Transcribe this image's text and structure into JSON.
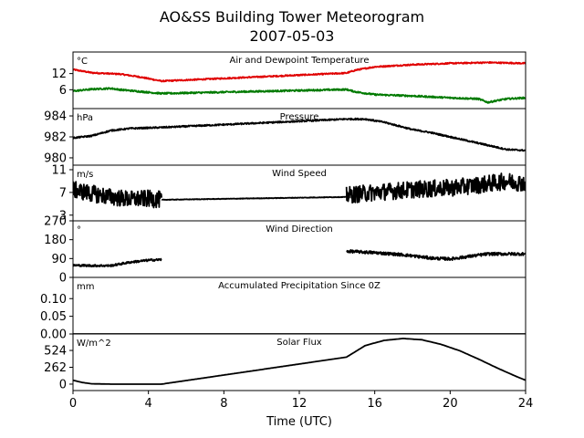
{
  "title": "AO&SS Building Tower Meteorogram",
  "subtitle": "2007-05-03",
  "chart_data": [
    {
      "type": "line",
      "title": "Air and Dewpoint Temperature",
      "unit": "°C",
      "ylim": [
        -1,
        20
      ],
      "yticks": [
        6,
        12
      ],
      "ytick_labels": [
        "6",
        "12"
      ],
      "series": [
        {
          "color": "#e00000",
          "noise": 0.25,
          "x": [
            0,
            1,
            2.5,
            3.5,
            4.7,
            14.5,
            15,
            16,
            18,
            20,
            22,
            24
          ],
          "y": [
            13.5,
            12.3,
            11.8,
            10.8,
            9.2,
            12.2,
            13.3,
            14.5,
            15.3,
            15.8,
            16.1,
            15.8
          ]
        },
        {
          "color": "#007a00",
          "noise": 0.3,
          "x": [
            0,
            1,
            2,
            2.5,
            4.7,
            14.5,
            15,
            16,
            18,
            20,
            21.5,
            22,
            22.5,
            23,
            24
          ],
          "y": [
            5.5,
            6.2,
            6.5,
            6.0,
            4.6,
            6.1,
            5.2,
            4.2,
            3.7,
            3.0,
            2.6,
            1.3,
            2.0,
            2.6,
            3.0
          ]
        }
      ]
    },
    {
      "type": "line",
      "title": "Pressure",
      "unit": "hPa",
      "ylim": [
        979.3,
        984.7
      ],
      "yticks": [
        980,
        982,
        984
      ],
      "ytick_labels": [
        "980",
        "982",
        "984"
      ],
      "series": [
        {
          "color": "#000000",
          "noise": 0.07,
          "x": [
            0,
            1,
            2,
            3,
            4.7,
            14.5,
            15.5,
            16.5,
            18,
            19,
            20,
            21,
            22,
            23,
            24
          ],
          "y": [
            981.9,
            982.1,
            982.6,
            982.8,
            982.9,
            983.7,
            983.7,
            983.4,
            982.7,
            982.4,
            982.0,
            981.6,
            981.2,
            980.8,
            980.7
          ]
        }
      ]
    },
    {
      "type": "line",
      "title": "Wind Speed",
      "unit": "m/s",
      "ylim": [
        2,
        11.8
      ],
      "yticks": [
        3,
        7,
        11
      ],
      "ytick_labels": [
        "3",
        "7",
        "11"
      ],
      "series": [
        {
          "color": "#000000",
          "noise": 1.5,
          "x": [
            0,
            1,
            2,
            3,
            4,
            4.7
          ],
          "y": [
            7.5,
            6.8,
            6.2,
            5.8,
            5.9,
            5.7
          ]
        },
        {
          "color": "#000000",
          "noise": 0.05,
          "x": [
            4.7,
            14.5
          ],
          "y": [
            5.7,
            6.2
          ]
        },
        {
          "color": "#000000",
          "noise": 1.5,
          "x": [
            14.5,
            16,
            18,
            20,
            21.5,
            23,
            24
          ],
          "y": [
            6.5,
            7.0,
            7.5,
            7.8,
            8.3,
            9.0,
            8.6
          ]
        }
      ]
    },
    {
      "type": "line",
      "title": "Wind Direction",
      "unit": "°",
      "ylim": [
        0,
        270
      ],
      "yticks": [
        0,
        90,
        180,
        270
      ],
      "ytick_labels": [
        "0",
        "90",
        "180",
        "270"
      ],
      "series": [
        {
          "color": "#000000",
          "noise": 5,
          "x": [
            0,
            1,
            2,
            3,
            4,
            4.7
          ],
          "y": [
            58,
            56,
            56,
            72,
            82,
            85
          ]
        },
        {
          "color": "#000000",
          "noise": 7,
          "x": [
            14.5,
            16,
            17.5,
            19,
            20,
            22,
            24
          ],
          "y": [
            125,
            118,
            108,
            92,
            88,
            112,
            112
          ]
        }
      ]
    },
    {
      "type": "line",
      "title": "Accumulated Precipitation Since 0Z",
      "unit": "mm",
      "ylim": [
        0,
        0.16
      ],
      "yticks": [
        0.0,
        0.05,
        0.1
      ],
      "ytick_labels": [
        "0.00",
        "0.05",
        "0.10"
      ],
      "series": [
        {
          "color": "#000000",
          "noise": 0,
          "x": [
            0,
            24
          ],
          "y": [
            0,
            0
          ]
        }
      ]
    },
    {
      "type": "line",
      "title": "Solar Flux",
      "unit": "W/m^2",
      "ylim": [
        -100,
        780
      ],
      "yticks": [
        0,
        262,
        524
      ],
      "ytick_labels": [
        "0",
        "262",
        "524"
      ],
      "series": [
        {
          "color": "#000000",
          "noise": 0,
          "x": [
            0,
            0.5,
            1,
            2,
            3,
            4.7,
            14.5,
            15.5,
            16.5,
            17.5,
            18.5,
            19.5,
            20.5,
            21.5,
            22.5,
            23.5,
            24
          ],
          "y": [
            60,
            25,
            5,
            0,
            0,
            0,
            420,
            600,
            680,
            710,
            690,
            620,
            520,
            390,
            250,
            120,
            60
          ]
        }
      ]
    }
  ],
  "x_axis": {
    "label": "Time (UTC)",
    "xlim": [
      0,
      24
    ],
    "ticks": [
      0,
      4,
      8,
      12,
      16,
      20,
      24
    ],
    "tick_labels": [
      "0",
      "4",
      "8",
      "12",
      "16",
      "20",
      "24"
    ]
  }
}
